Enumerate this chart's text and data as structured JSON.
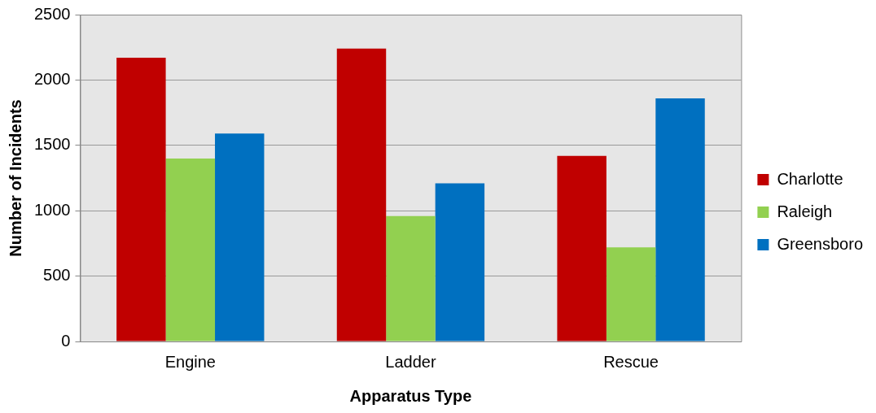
{
  "chart_data": {
    "type": "bar",
    "xlabel": "Apparatus Type",
    "ylabel": "Number of Incidents",
    "categories": [
      "Engine",
      "Ladder",
      "Rescue"
    ],
    "series": [
      {
        "name": "Charlotte",
        "color": "#c00000",
        "values": [
          2170,
          2240,
          1420
        ]
      },
      {
        "name": "Raleigh",
        "color": "#92d050",
        "values": [
          1400,
          960,
          720
        ]
      },
      {
        "name": "Greensboro",
        "color": "#0070c0",
        "values": [
          1590,
          1210,
          1860
        ]
      }
    ],
    "ylim": [
      0,
      2500
    ],
    "yticks": [
      0,
      500,
      1000,
      1500,
      2000,
      2500
    ],
    "grid": "y",
    "legend": "right"
  }
}
